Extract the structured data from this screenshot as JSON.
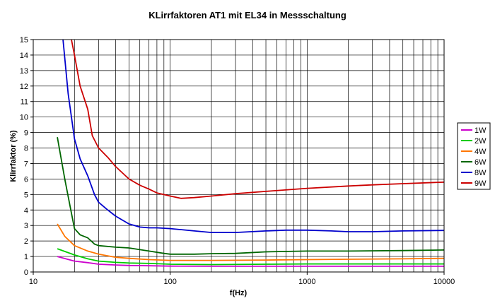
{
  "chart_data": {
    "type": "line",
    "title": "KLirrfaktoren AT1 mit EL34 in Messschaltung",
    "xlabel": "f(Hz)",
    "ylabel": "Klirrfaktor (%)",
    "xscale": "log",
    "xlim": [
      10,
      10000
    ],
    "ylim": [
      0,
      15
    ],
    "grid": true,
    "legend_position": "right",
    "x_ticks": [
      "10",
      "100",
      "1000",
      "10000"
    ],
    "y_ticks": [
      "0",
      "1",
      "2",
      "3",
      "4",
      "5",
      "6",
      "7",
      "8",
      "9",
      "10",
      "11",
      "12",
      "13",
      "14",
      "15"
    ],
    "series": [
      {
        "name": "1W",
        "color": "#cc00cc",
        "points": [
          [
            15,
            1.0
          ],
          [
            20,
            0.7
          ],
          [
            25,
            0.6
          ],
          [
            30,
            0.5
          ],
          [
            40,
            0.45
          ],
          [
            50,
            0.42
          ],
          [
            70,
            0.4
          ],
          [
            100,
            0.38
          ],
          [
            200,
            0.37
          ],
          [
            500,
            0.37
          ],
          [
            1000,
            0.37
          ],
          [
            2000,
            0.37
          ],
          [
            5000,
            0.37
          ],
          [
            10000,
            0.37
          ]
        ]
      },
      {
        "name": "2W",
        "color": "#00cc00",
        "points": [
          [
            15,
            1.5
          ],
          [
            20,
            1.1
          ],
          [
            25,
            0.85
          ],
          [
            30,
            0.7
          ],
          [
            40,
            0.62
          ],
          [
            50,
            0.58
          ],
          [
            70,
            0.55
          ],
          [
            100,
            0.5
          ],
          [
            200,
            0.48
          ],
          [
            500,
            0.5
          ],
          [
            1000,
            0.52
          ],
          [
            2000,
            0.52
          ],
          [
            5000,
            0.52
          ],
          [
            10000,
            0.52
          ]
        ]
      },
      {
        "name": "4W",
        "color": "#ff7700",
        "points": [
          [
            15,
            3.1
          ],
          [
            17,
            2.3
          ],
          [
            20,
            1.7
          ],
          [
            25,
            1.35
          ],
          [
            30,
            1.15
          ],
          [
            40,
            0.95
          ],
          [
            50,
            0.88
          ],
          [
            70,
            0.8
          ],
          [
            100,
            0.75
          ],
          [
            200,
            0.75
          ],
          [
            500,
            0.77
          ],
          [
            1000,
            0.8
          ],
          [
            2000,
            0.82
          ],
          [
            5000,
            0.85
          ],
          [
            10000,
            0.88
          ]
        ]
      },
      {
        "name": "6W",
        "color": "#006600",
        "points": [
          [
            15,
            8.7
          ],
          [
            17,
            6.0
          ],
          [
            19,
            3.8
          ],
          [
            20,
            2.8
          ],
          [
            22,
            2.4
          ],
          [
            25,
            2.2
          ],
          [
            28,
            1.8
          ],
          [
            30,
            1.7
          ],
          [
            40,
            1.6
          ],
          [
            50,
            1.55
          ],
          [
            70,
            1.35
          ],
          [
            90,
            1.2
          ],
          [
            100,
            1.15
          ],
          [
            150,
            1.15
          ],
          [
            200,
            1.18
          ],
          [
            300,
            1.2
          ],
          [
            500,
            1.3
          ],
          [
            1000,
            1.35
          ],
          [
            2000,
            1.35
          ],
          [
            5000,
            1.38
          ],
          [
            10000,
            1.42
          ]
        ]
      },
      {
        "name": "8W",
        "color": "#0000cc",
        "points": [
          [
            16.5,
            15.0
          ],
          [
            18,
            11.5
          ],
          [
            20,
            8.6
          ],
          [
            22,
            7.3
          ],
          [
            25,
            6.2
          ],
          [
            28,
            5.0
          ],
          [
            30,
            4.5
          ],
          [
            35,
            4.0
          ],
          [
            40,
            3.6
          ],
          [
            50,
            3.1
          ],
          [
            60,
            2.9
          ],
          [
            70,
            2.85
          ],
          [
            80,
            2.85
          ],
          [
            100,
            2.8
          ],
          [
            150,
            2.65
          ],
          [
            200,
            2.55
          ],
          [
            300,
            2.55
          ],
          [
            500,
            2.65
          ],
          [
            700,
            2.7
          ],
          [
            1000,
            2.7
          ],
          [
            1500,
            2.65
          ],
          [
            2000,
            2.6
          ],
          [
            3000,
            2.6
          ],
          [
            5000,
            2.65
          ],
          [
            10000,
            2.68
          ]
        ]
      },
      {
        "name": "9W",
        "color": "#cc0000",
        "points": [
          [
            19,
            15.0
          ],
          [
            20,
            14.0
          ],
          [
            22,
            12.0
          ],
          [
            25,
            10.5
          ],
          [
            27,
            8.8
          ],
          [
            30,
            8.0
          ],
          [
            35,
            7.4
          ],
          [
            40,
            6.8
          ],
          [
            50,
            6.0
          ],
          [
            60,
            5.6
          ],
          [
            70,
            5.35
          ],
          [
            80,
            5.1
          ],
          [
            100,
            4.9
          ],
          [
            120,
            4.75
          ],
          [
            150,
            4.8
          ],
          [
            200,
            4.9
          ],
          [
            300,
            5.05
          ],
          [
            500,
            5.2
          ],
          [
            1000,
            5.4
          ],
          [
            2000,
            5.55
          ],
          [
            3000,
            5.62
          ],
          [
            5000,
            5.7
          ],
          [
            10000,
            5.8
          ]
        ]
      }
    ]
  }
}
